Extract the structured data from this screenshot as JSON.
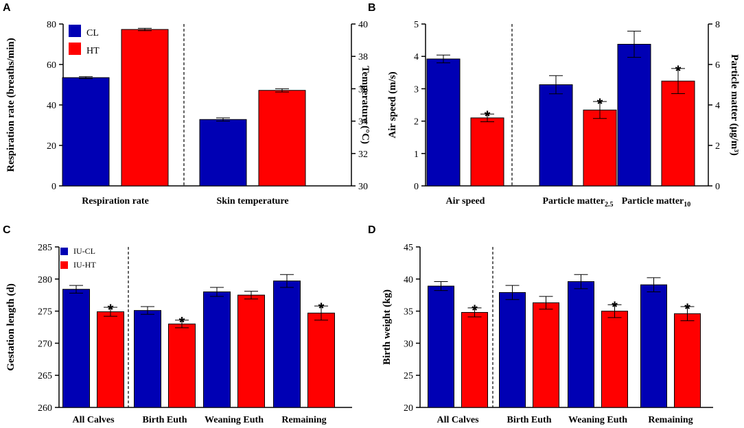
{
  "colors": {
    "cl": "#0000b4",
    "ht": "#ff0000"
  },
  "star_symbol": "*",
  "chart_data": [
    {
      "panel": "A",
      "type": "bar",
      "legend": [
        "CL",
        "HT"
      ],
      "ylabel": "Respiration rate (breaths/min)",
      "y2label": "Temperature (°C)",
      "ylim": [
        0,
        80
      ],
      "yticks": [
        0,
        20,
        40,
        60,
        80
      ],
      "y2lim": [
        30,
        40
      ],
      "y2ticks": [
        30,
        32,
        34,
        36,
        38,
        40
      ],
      "categories": [
        "Respiration rate",
        "Skin temperature"
      ],
      "category_axis": [
        "left",
        "right"
      ],
      "series": [
        {
          "name": "CL",
          "values": [
            53.5,
            34.1
          ],
          "errors": [
            0.5,
            0.1
          ]
        },
        {
          "name": "HT",
          "values": [
            77.3,
            35.9
          ],
          "errors": [
            0.6,
            0.1
          ]
        }
      ],
      "significant": [
        false,
        false,
        false,
        false,
        true,
        true
      ]
    },
    {
      "panel": "B",
      "type": "bar",
      "legend": [],
      "ylabel": "Air speed (m/s)",
      "y2label": "Particle matter (μg/m³)",
      "ylim": [
        0,
        5
      ],
      "yticks": [
        0,
        1,
        2,
        3,
        4,
        5
      ],
      "y2lim": [
        0,
        8
      ],
      "y2ticks": [
        0,
        2,
        4,
        6,
        8
      ],
      "categories": [
        "Air speed",
        "Particle matter",
        "Particle matter"
      ],
      "category_subscripts": [
        "",
        "2.5",
        "10"
      ],
      "category_axis": [
        "left",
        "right",
        "right"
      ],
      "series": [
        {
          "name": "CL",
          "values": [
            3.92,
            5.0,
            7.0
          ],
          "errors": [
            0.12,
            0.45,
            0.65
          ]
        },
        {
          "name": "HT",
          "values": [
            2.1,
            3.75,
            5.18
          ],
          "errors": [
            0.12,
            0.42,
            0.62
          ]
        }
      ],
      "significant": [
        false,
        false,
        false,
        true,
        true,
        true
      ]
    },
    {
      "panel": "C",
      "type": "bar",
      "legend": [
        "IU-CL",
        "IU-HT"
      ],
      "ylabel": "Gestation length (d)",
      "ylim": [
        260,
        285
      ],
      "yticks": [
        260,
        265,
        270,
        275,
        280,
        285
      ],
      "categories": [
        "All Calves",
        "Birth Euth",
        "Weaning Euth",
        "Remaining"
      ],
      "series": [
        {
          "name": "IU-CL",
          "values": [
            278.4,
            275.1,
            278.0,
            279.7
          ],
          "errors": [
            0.6,
            0.6,
            0.7,
            1.0
          ]
        },
        {
          "name": "IU-HT",
          "values": [
            274.9,
            273.0,
            277.5,
            274.7
          ],
          "errors": [
            0.7,
            0.6,
            0.6,
            1.1
          ]
        }
      ],
      "significant": [
        false,
        false,
        false,
        false,
        true,
        true,
        false,
        true
      ]
    },
    {
      "panel": "D",
      "type": "bar",
      "legend": [],
      "ylabel": "Birth weight  (kg)",
      "ylim": [
        20,
        45
      ],
      "yticks": [
        20,
        25,
        30,
        35,
        40,
        45
      ],
      "categories": [
        "All Calves",
        "Birth Euth",
        "Weaning Euth",
        "Remaining"
      ],
      "series": [
        {
          "name": "IU-CL",
          "values": [
            38.9,
            37.9,
            39.6,
            39.1
          ],
          "errors": [
            0.7,
            1.1,
            1.1,
            1.1
          ]
        },
        {
          "name": "IU-HT",
          "values": [
            34.8,
            36.3,
            35.0,
            34.6
          ],
          "errors": [
            0.7,
            1.0,
            1.0,
            1.1
          ]
        }
      ],
      "significant": [
        false,
        false,
        false,
        false,
        true,
        false,
        true,
        true
      ]
    }
  ]
}
